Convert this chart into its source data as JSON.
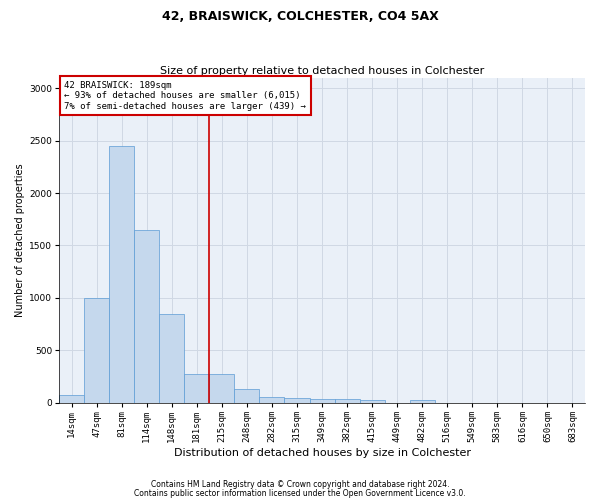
{
  "title1": "42, BRAISWICK, COLCHESTER, CO4 5AX",
  "title2": "Size of property relative to detached houses in Colchester",
  "xlabel": "Distribution of detached houses by size in Colchester",
  "ylabel": "Number of detached properties",
  "footnote1": "Contains HM Land Registry data © Crown copyright and database right 2024.",
  "footnote2": "Contains public sector information licensed under the Open Government Licence v3.0.",
  "bin_labels": [
    "14sqm",
    "47sqm",
    "81sqm",
    "114sqm",
    "148sqm",
    "181sqm",
    "215sqm",
    "248sqm",
    "282sqm",
    "315sqm",
    "349sqm",
    "382sqm",
    "415sqm",
    "449sqm",
    "482sqm",
    "516sqm",
    "549sqm",
    "583sqm",
    "616sqm",
    "650sqm",
    "683sqm"
  ],
  "bar_heights": [
    75,
    1000,
    2450,
    1650,
    850,
    275,
    275,
    130,
    55,
    50,
    40,
    40,
    30,
    0,
    30,
    0,
    0,
    0,
    0,
    0,
    0
  ],
  "bar_color": "#c5d8ed",
  "bar_edge_color": "#5b9bd5",
  "grid_color": "#d0d8e4",
  "background_color": "#eaf0f8",
  "vline_color": "#cc0000",
  "annotation_text": "42 BRAISWICK: 189sqm\n← 93% of detached houses are smaller (6,015)\n7% of semi-detached houses are larger (439) →",
  "annotation_box_color": "#cc0000",
  "ylim": [
    0,
    3100
  ],
  "yticks": [
    0,
    500,
    1000,
    1500,
    2000,
    2500,
    3000
  ],
  "title1_fontsize": 9,
  "title2_fontsize": 8,
  "xlabel_fontsize": 8,
  "ylabel_fontsize": 7,
  "tick_fontsize": 6.5,
  "annotation_fontsize": 6.5,
  "footnote_fontsize": 5.5
}
